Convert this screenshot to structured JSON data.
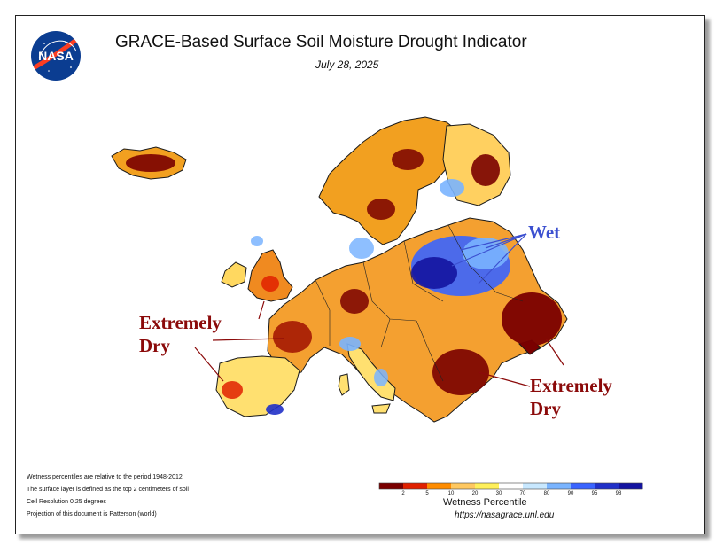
{
  "header": {
    "logo_text": "NASA",
    "title": "GRACE-Based Surface Soil Moisture Drought Indicator",
    "date": "July 28, 2025"
  },
  "annotations": {
    "wet": "Wet",
    "west_line1": "Extremely",
    "west_line2": "Dry",
    "east_line1": "Extremely",
    "east_line2": "Dry"
  },
  "notes": [
    "Wetness percentiles are relative to the period 1948-2012",
    "The surface layer is defined as the top 2 centimeters of soil",
    "Cell Resolution 0.25 degrees",
    "Projection of this document is Patterson (world)"
  ],
  "legend": {
    "title": "Wetness Percentile",
    "url": "https://nasagrace.unl.edu",
    "ticks": [
      "2",
      "5",
      "10",
      "20",
      "30",
      "70",
      "80",
      "90",
      "95",
      "98"
    ],
    "colors": [
      "#7a0000",
      "#e02000",
      "#ff8c00",
      "#ffc860",
      "#fff05a",
      "#ffffff",
      "#c8e8ff",
      "#7ab4ff",
      "#3a64ff",
      "#2030c8",
      "#1414a0"
    ]
  },
  "colors": {
    "wet_label": "#3c50d0",
    "dry_label": "#8b0a0a",
    "nasa_blue": "#0b3d91",
    "nasa_red": "#fc3d21"
  }
}
